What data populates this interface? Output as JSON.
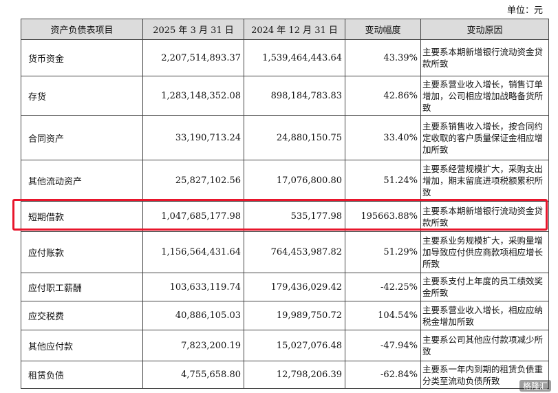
{
  "unit_label": "单位：元",
  "columns": [
    "资产负债表项目",
    "2025 年 3 月 31 日",
    "2024 年 12 月 31 日",
    "变动幅度",
    "变动原因"
  ],
  "rows": [
    {
      "item": "货币资金",
      "current": "2,207,514,893.37",
      "prior": "1,539,464,443.64",
      "change": "43.39%",
      "reason": "主要系本期新增银行流动资金贷款所致"
    },
    {
      "item": "存货",
      "current": "1,283,148,352.08",
      "prior": "898,184,783.83",
      "change": "42.86%",
      "reason": "主要系营业收入增长，销售订单增加，公司相应增加战略备货所致"
    },
    {
      "item": "合同资产",
      "current": "33,190,713.24",
      "prior": "24,880,150.75",
      "change": "33.40%",
      "reason": "主要系销售收入增长，按合同约定收取的客户质量保证金相应增加所致"
    },
    {
      "item": "其他流动资产",
      "current": "25,827,102.56",
      "prior": "17,076,800.80",
      "change": "51.24%",
      "reason": "主要系经营规模扩大，采购支出增加，期末留底进项税额累积所致"
    },
    {
      "item": "短期借款",
      "current": "1,047,685,177.98",
      "prior": "535,177.98",
      "change": "195663.88%",
      "reason": "主要系本期新增银行流动资金贷款所致"
    },
    {
      "item": "应付账款",
      "current": "1,156,564,431.64",
      "prior": "764,453,987.82",
      "change": "51.29%",
      "reason": "主要系业务规模扩大，采购量增加导致应付供应商款项相应增长所致"
    },
    {
      "item": "应付职工薪酬",
      "current": "103,633,119.74",
      "prior": "179,436,029.42",
      "change": "-42.25%",
      "reason": "主要系支付上年度的员工绩效奖金所致"
    },
    {
      "item": "应交税费",
      "current": "40,886,105.03",
      "prior": "19,989,750.72",
      "change": "104.54%",
      "reason": "主要系营业收入增长，相应应纳税金增加所致"
    },
    {
      "item": "其他应付款",
      "current": "7,823,200.19",
      "prior": "15,027,076.48",
      "change": "-47.94%",
      "reason": "主要系公司其他应付款项减少所致"
    },
    {
      "item": "租赁负债",
      "current": "4,755,658.80",
      "prior": "12,798,206.39",
      "change": "-62.84%",
      "reason": "主要系一年内到期的租赁负债重分类至流动负债所致"
    }
  ],
  "watermark": "格隆汇"
}
